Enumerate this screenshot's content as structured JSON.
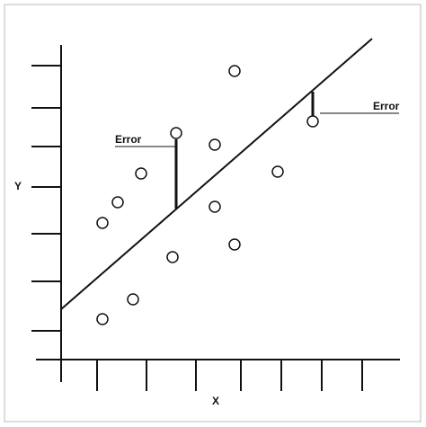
{
  "axes": {
    "x_label": "X",
    "y_label": "Y"
  },
  "annotations": [
    {
      "label": "Error"
    },
    {
      "label": "Error"
    }
  ]
}
